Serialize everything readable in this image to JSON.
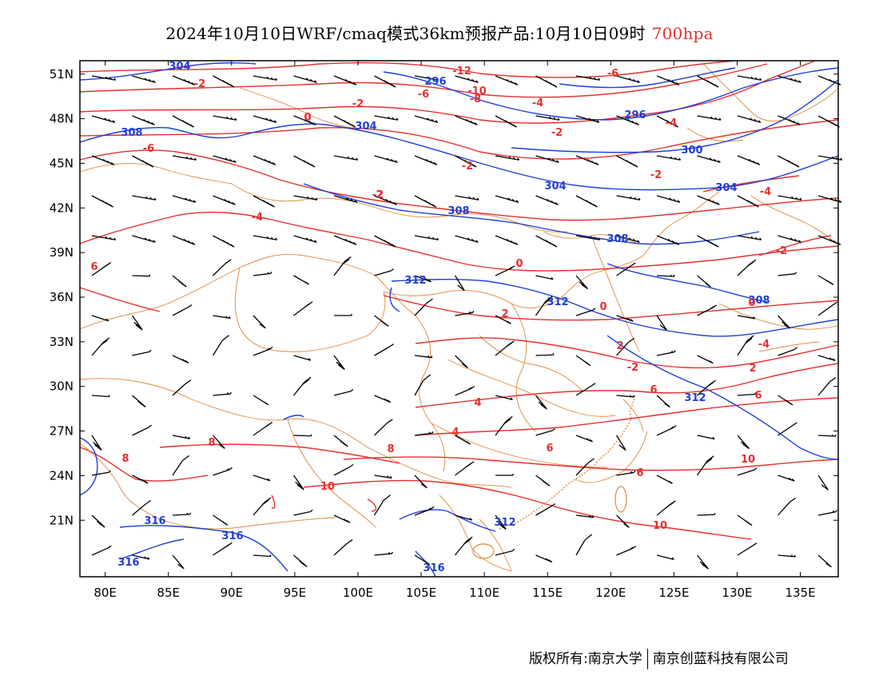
{
  "title": {
    "main": "2024年10月10日WRF/cmaq模式36km预报产品:10月10日09时",
    "level": "700hpa",
    "level_color": "#e53030"
  },
  "axes": {
    "lon_labels": [
      "80E",
      "85E",
      "90E",
      "95E",
      "100E",
      "105E",
      "110E",
      "115E",
      "120E",
      "125E",
      "130E",
      "135E"
    ],
    "lon_values": [
      80,
      85,
      90,
      95,
      100,
      105,
      110,
      115,
      120,
      125,
      130,
      135
    ],
    "lat_labels": [
      "51N",
      "48N",
      "45N",
      "42N",
      "39N",
      "36N",
      "33N",
      "30N",
      "27N",
      "24N",
      "21N"
    ],
    "lat_values": [
      51,
      48,
      45,
      42,
      39,
      36,
      33,
      30,
      27,
      24,
      21
    ],
    "lon_range": [
      78,
      138
    ],
    "lat_range": [
      17.2,
      51.9
    ]
  },
  "geopotential_height": {
    "color": "#1f3fd6",
    "labels": [
      "304",
      "308",
      "296",
      "304",
      "296",
      "300",
      "304",
      "304",
      "308",
      "308",
      "312",
      "312",
      "312",
      "316",
      "316",
      "316",
      "316",
      "312",
      "308"
    ]
  },
  "temperature": {
    "color": "#e53030",
    "labels": [
      "-12",
      "-10",
      "-8",
      "-6",
      "-6",
      "-4",
      "-4",
      "-2",
      "-2",
      "0",
      "-2",
      "-4",
      "-2",
      "-2",
      "0",
      "0",
      "0",
      "2",
      "-2",
      "-4",
      "2",
      "2",
      "4",
      "4",
      "6",
      "6",
      "6",
      "8",
      "8",
      "6",
      "8",
      "10",
      "10",
      "10",
      "-2",
      "-4",
      "6",
      "-6",
      "-2",
      "0",
      "2"
    ]
  },
  "legend_note": "wind barbs (black), geopotential height (blue), temperature (red)",
  "footer": {
    "left": "版权所有:南京大学",
    "right": "南京创蓝科技有限公司"
  }
}
